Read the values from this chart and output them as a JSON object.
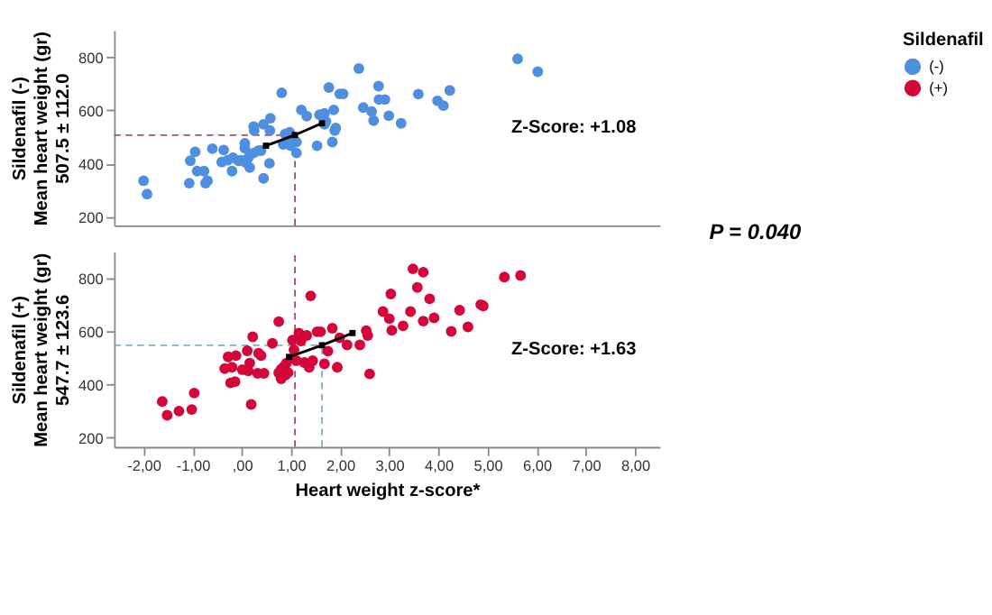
{
  "chart_data": [
    {
      "type": "scatter",
      "ylabel": "Sildenafil (-)\nMean heart weight (gr)\n507.5 ± 112.0",
      "legend_title": "Sildenafil",
      "legend": "right",
      "xlim": [
        -2.6,
        8.5
      ],
      "ylim": [
        170,
        900
      ],
      "yticks": [
        200,
        400,
        600,
        800
      ],
      "tick_labels": "y",
      "marker": "circle",
      "annotations": [
        "Z-Score: +1.08",
        "P = 0.040"
      ],
      "ref_lines": [
        {
          "axis": "x",
          "value": 1.08,
          "color": "#b05060",
          "line_style": "dashed"
        },
        {
          "axis": "y",
          "value": 507.5,
          "color": "#b05060",
          "line_style": "dashed"
        }
      ],
      "series": [
        {
          "name": "(-)",
          "color": "#4f8fe0",
          "x": [
            -2.0,
            -1.93,
            -1.07,
            -1.05,
            -0.95,
            -0.91,
            -0.77,
            -0.74,
            -0.7,
            -0.6,
            -0.41,
            -0.37,
            -0.29,
            -0.2,
            -0.18,
            -0.07,
            -0.02,
            0.06,
            0.06,
            0.08,
            0.13,
            0.16,
            0.24,
            0.25,
            0.24,
            0.34,
            0.39,
            0.44,
            0.44,
            0.56,
            0.57,
            0.58,
            0.81,
            0.84,
            0.88,
            0.94,
            0.97,
            0.99,
            1.11,
            1.11,
            1.21,
            1.32,
            1.53,
            1.58,
            1.68,
            1.68,
            1.71,
            1.77,
            1.84,
            1.87,
            1.89,
            1.91,
            1.99,
            2.06,
            2.38,
            2.47,
            2.64,
            2.68,
            2.78,
            2.79,
            2.91,
            2.99,
            3.24,
            3.59,
            3.98,
            4.1,
            4.23,
            5.61,
            6.02
          ],
          "values": [
            337,
            287,
            328,
            412,
            445,
            373,
            373,
            328,
            337,
            457,
            407,
            452,
            414,
            373,
            423,
            412,
            414,
            477,
            459,
            405,
            423,
            386,
            441,
            525,
            539,
            450,
            450,
            346,
            548,
            402,
            525,
            571,
            666,
            473,
            512,
            500,
            518,
            468,
            441,
            482,
            602,
            579,
            468,
            584,
            589,
            548,
            559,
            686,
            482,
            602,
            525,
            534,
            662,
            662,
            757,
            611,
            596,
            562,
            691,
            641,
            641,
            580,
            552,
            661,
            636,
            618,
            675,
            793,
            745
          ]
        },
        {
          "type": "line",
          "color": "#000000",
          "marker": "square",
          "x": [
            0.49,
            1.08,
            1.63
          ],
          "values": [
            468,
            508,
            552
          ]
        }
      ]
    },
    {
      "type": "scatter",
      "ylabel": "Sildenafil (+)\nMean heart weight (gr)\n547.7 ± 123.6",
      "xlabel": "Heart weight z-score*",
      "xlim": [
        -2.6,
        8.5
      ],
      "ylim": [
        165,
        900
      ],
      "yticks": [
        200,
        400,
        600,
        800
      ],
      "xticks": [
        {
          "value": -2,
          "label": "-2,00"
        },
        {
          "value": -1,
          "label": "-1,00"
        },
        {
          "value": 0,
          "label": ",00"
        },
        {
          "value": 1,
          "label": "1,00"
        },
        {
          "value": 2,
          "label": "2,00"
        },
        {
          "value": 3,
          "label": "3,00"
        },
        {
          "value": 4,
          "label": "4,00"
        },
        {
          "value": 5,
          "label": "5,00"
        },
        {
          "value": 6,
          "label": "6,00"
        },
        {
          "value": 7,
          "label": "7,00"
        },
        {
          "value": 8,
          "label": "8,00"
        }
      ],
      "marker": "circle",
      "annotations": [
        "Z-Score: +1.63"
      ],
      "ref_lines": [
        {
          "axis": "x",
          "value": 1.08,
          "color": "#b05060",
          "line_style": "dashed"
        },
        {
          "axis": "x",
          "value": 1.63,
          "color": "#7fb0c0",
          "line_style": "dashed"
        },
        {
          "axis": "y",
          "value": 547.7,
          "color": "#7fb0c0",
          "line_style": "dashed"
        }
      ],
      "series": [
        {
          "name": "(+)",
          "color": "#d4063a",
          "x": [
            -1.62,
            -1.52,
            -1.28,
            -1.02,
            -0.97,
            -0.35,
            -0.28,
            -0.2,
            -0.23,
            -0.14,
            -0.12,
            0.01,
            0.11,
            0.13,
            0.16,
            0.19,
            0.22,
            0.32,
            0.34,
            0.39,
            0.45,
            0.62,
            0.75,
            0.75,
            0.8,
            0.8,
            0.86,
            0.89,
            0.91,
            0.94,
            1.03,
            1.06,
            1.11,
            1.16,
            1.2,
            1.27,
            1.32,
            1.37,
            1.4,
            1.44,
            1.53,
            1.6,
            1.68,
            1.75,
            1.84,
            1.94,
            1.99,
            2.14,
            2.4,
            2.53,
            2.56,
            2.6,
            2.87,
            3.0,
            3.03,
            3.05,
            3.28,
            3.43,
            3.48,
            3.57,
            3.69,
            3.69,
            3.82,
            3.91,
            4.26,
            4.43,
            4.6,
            4.86,
            4.91,
            5.34,
            5.67
          ],
          "values": [
            336,
            284,
            300,
            306,
            368,
            460,
            504,
            465,
            406,
            411,
            509,
            456,
            527,
            451,
            481,
            325,
            580,
            442,
            518,
            509,
            442,
            555,
            637,
            444,
            422,
            458,
            469,
            436,
            481,
            445,
            567,
            531,
            490,
            594,
            564,
            483,
            585,
            465,
            734,
            490,
            599,
            599,
            478,
            526,
            612,
            465,
            576,
            549,
            549,
            603,
            585,
            440,
            675,
            648,
            741,
            604,
            621,
            675,
            836,
            766,
            823,
            639,
            723,
            651,
            600,
            680,
            617,
            701,
            696,
            805,
            811
          ]
        },
        {
          "type": "line",
          "color": "#000000",
          "marker": "square",
          "x": [
            0.96,
            1.63,
            2.25
          ],
          "values": [
            504,
            548,
            594
          ]
        }
      ]
    }
  ]
}
